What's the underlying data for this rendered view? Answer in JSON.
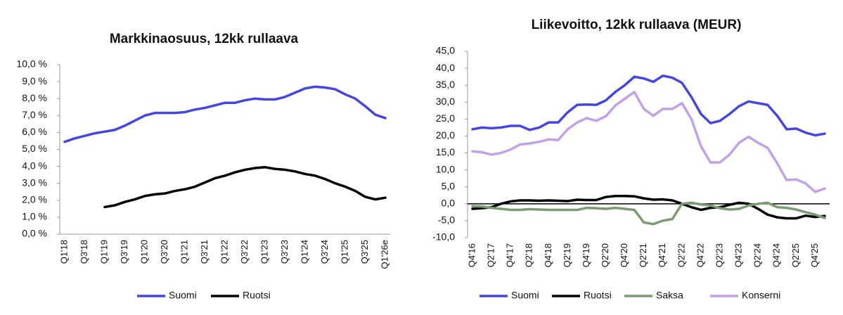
{
  "chart_data": [
    {
      "type": "line",
      "title": "Markkinaosuus, 12kk rullaava",
      "categories": [
        "Q1'18",
        null,
        "Q3'18",
        null,
        "Q1'19",
        null,
        "Q3'19",
        null,
        "Q1'20",
        null,
        "Q3'20",
        null,
        "Q1'21",
        null,
        "Q3'21",
        null,
        "Q1'22",
        null,
        "Q3'22",
        null,
        "Q1'23",
        null,
        "Q3'23",
        null,
        "Q1'24",
        null,
        "Q3'24",
        null,
        "Q1'25",
        null,
        "Q3'25",
        null,
        "Q1'26e"
      ],
      "series": [
        {
          "name": "Suomi",
          "color": "#4545e2",
          "values": [
            5.45,
            5.65,
            5.8,
            5.95,
            6.05,
            6.15,
            6.4,
            6.7,
            7.0,
            7.15,
            7.15,
            7.15,
            7.2,
            7.35,
            7.45,
            7.6,
            7.75,
            7.75,
            7.9,
            8.0,
            7.95,
            7.95,
            8.1,
            8.35,
            8.6,
            8.7,
            8.65,
            8.55,
            8.25,
            8.0,
            7.55,
            7.05,
            6.85
          ]
        },
        {
          "name": "Ruotsi",
          "color": "#000000",
          "values": [
            null,
            null,
            null,
            null,
            1.6,
            1.7,
            1.9,
            2.05,
            2.25,
            2.35,
            2.4,
            2.55,
            2.65,
            2.8,
            3.05,
            3.3,
            3.45,
            3.65,
            3.8,
            3.9,
            3.95,
            3.85,
            3.8,
            3.7,
            3.55,
            3.45,
            3.25,
            3.0,
            2.8,
            2.55,
            2.2,
            2.05,
            2.15
          ]
        }
      ],
      "ylim": [
        0,
        10
      ],
      "yticks": [
        {
          "value": 0,
          "label": "0,0 %"
        },
        {
          "value": 1,
          "label": "1,0 %"
        },
        {
          "value": 2,
          "label": "2,0 %"
        },
        {
          "value": 3,
          "label": "3,0 %"
        },
        {
          "value": 4,
          "label": "4,0 %"
        },
        {
          "value": 5,
          "label": "5,0 %"
        },
        {
          "value": 6,
          "label": "6,0 %"
        },
        {
          "value": 7,
          "label": "7,0 %"
        },
        {
          "value": 8,
          "label": "8,0 %"
        },
        {
          "value": 9,
          "label": "9,0 %"
        },
        {
          "value": 10,
          "label": "10,0 %"
        }
      ],
      "grid": false,
      "legend": "bottom"
    },
    {
      "type": "line",
      "title": "Liikevoitto, 12kk rullaava (MEUR)",
      "categories": [
        "Q4'16",
        null,
        "Q2'17",
        null,
        "Q4'17",
        null,
        "Q2'18",
        null,
        "Q4'18",
        null,
        "Q2'19",
        null,
        "Q4'19",
        null,
        "Q2'20",
        null,
        "Q4'20",
        null,
        "Q2'21",
        null,
        "Q4'21",
        null,
        "Q2'22",
        null,
        "Q4'22",
        null,
        "Q2'23",
        null,
        "Q4'23",
        null,
        "Q2'24",
        null,
        "Q4'24",
        null,
        "Q2'25",
        null,
        "Q4'25",
        null
      ],
      "series": [
        {
          "name": "Suomi",
          "color": "#4545e2",
          "values": [
            22,
            22.5,
            22.3,
            22.5,
            23,
            23,
            21.8,
            22.5,
            24,
            24,
            27,
            29.2,
            29.3,
            29.2,
            30.5,
            33,
            35,
            37.5,
            37,
            36,
            37.8,
            37.2,
            35.7,
            31.5,
            26.5,
            23.8,
            24.5,
            26.5,
            28.8,
            30.2,
            29.7,
            29.2,
            26,
            22,
            22.2,
            21,
            20.2,
            20.7
          ]
        },
        {
          "name": "Ruotsi",
          "color": "#000000",
          "values": [
            -1.5,
            -1.3,
            -1,
            0,
            0.7,
            1,
            1,
            0.9,
            1,
            0.9,
            0.8,
            1.2,
            1.1,
            1.1,
            2,
            2.3,
            2.3,
            2.2,
            1.6,
            1.2,
            1.3,
            1,
            0,
            -1,
            -1.8,
            -1.2,
            -1,
            -0.3,
            0.3,
            0,
            -1.5,
            -3.2,
            -4,
            -4.3,
            -4.3,
            -3.5,
            -3.9,
            -3.6
          ]
        },
        {
          "name": "Saksa",
          "color": "#7b9b73",
          "values": [
            -0.7,
            -0.8,
            -1.2,
            -1.5,
            -1.8,
            -1.8,
            -1.6,
            -1.7,
            -1.8,
            -1.8,
            -1.8,
            -1.8,
            -1.2,
            -1.3,
            -1.5,
            -1.2,
            -1.5,
            -1.8,
            -5.5,
            -6,
            -5,
            -4.5,
            0,
            0.3,
            -0.2,
            -0.5,
            -1.3,
            -1.7,
            -1.5,
            -0.5,
            0,
            0.3,
            -1,
            -1.2,
            -1.7,
            -2.5,
            -3.2,
            -4.2
          ]
        },
        {
          "name": "Konserni",
          "color": "#c1a2ea",
          "values": [
            15.5,
            15.2,
            14.5,
            15,
            16,
            17.5,
            17.8,
            18.3,
            19,
            18.8,
            22,
            24,
            25.3,
            24.5,
            25.8,
            29,
            31,
            33,
            28,
            26,
            28,
            28,
            29.7,
            25,
            17,
            12.2,
            12.2,
            14.5,
            18,
            19.8,
            18,
            16.5,
            12,
            7,
            7.2,
            6,
            3.5,
            4.5
          ]
        }
      ],
      "ylim": [
        -10,
        45
      ],
      "yticks": [
        {
          "value": -10,
          "label": "-10,0"
        },
        {
          "value": -5,
          "label": "-5,0"
        },
        {
          "value": 0,
          "label": "0,0"
        },
        {
          "value": 5,
          "label": "5,0"
        },
        {
          "value": 10,
          "label": "10,0"
        },
        {
          "value": 15,
          "label": "15,0"
        },
        {
          "value": 20,
          "label": "20,0"
        },
        {
          "value": 25,
          "label": "25,0"
        },
        {
          "value": 30,
          "label": "30,0"
        },
        {
          "value": 35,
          "label": "35,0"
        },
        {
          "value": 40,
          "label": "40,0"
        },
        {
          "value": 45,
          "label": "45,0"
        }
      ],
      "grid": false,
      "legend": "bottom"
    }
  ]
}
